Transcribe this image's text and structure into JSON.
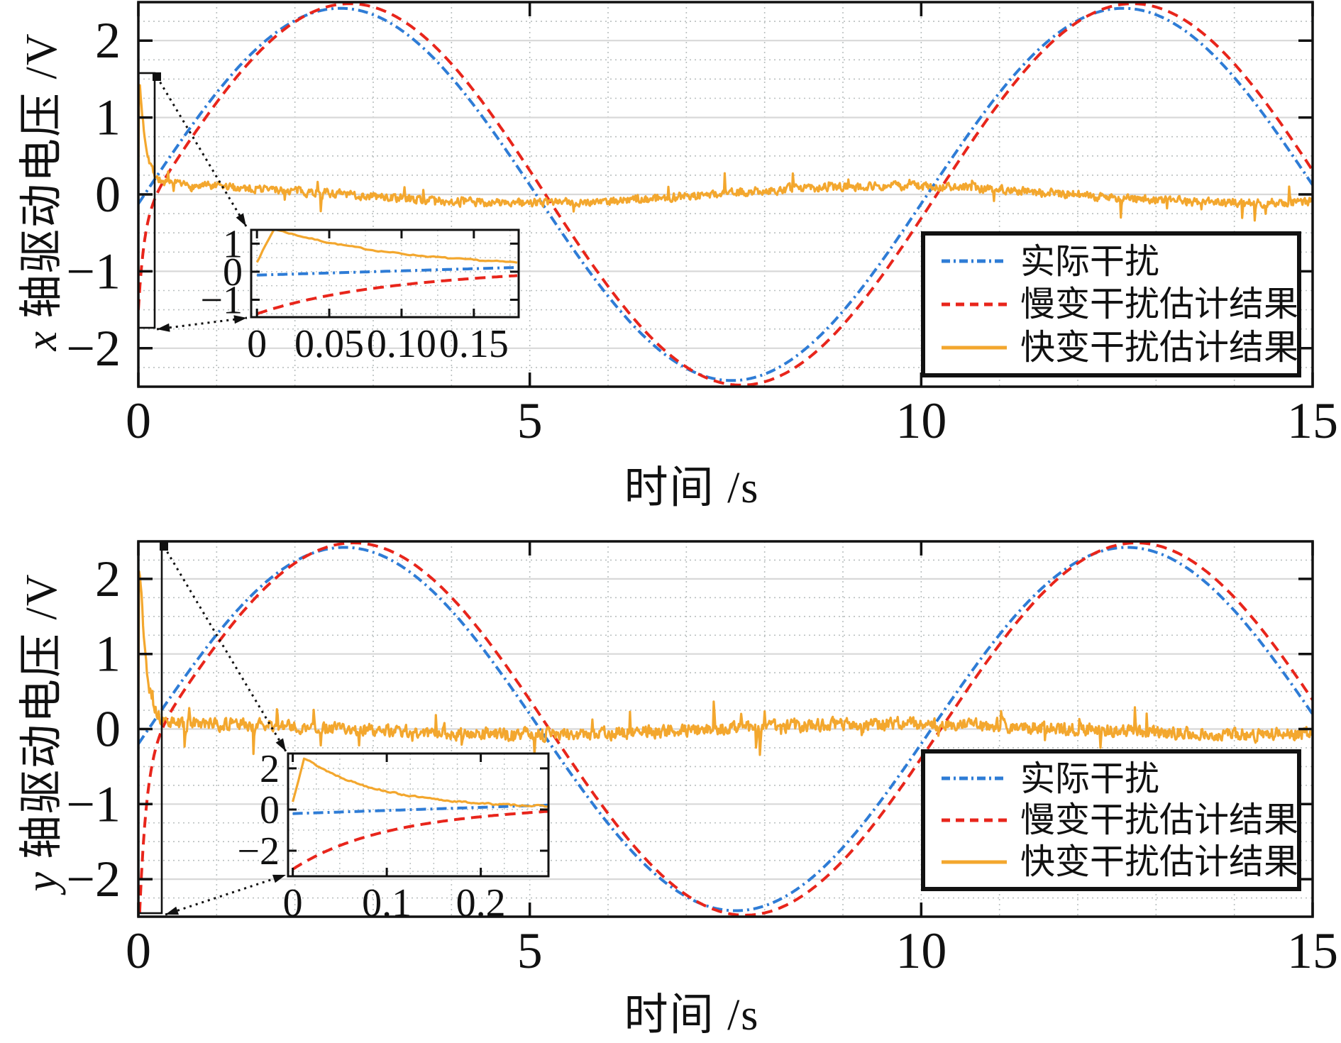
{
  "figure": {
    "background": "#ffffff",
    "text_color": "#111111"
  },
  "chart_data": [
    {
      "id": "x",
      "type": "line",
      "xlabel": "时间 /s",
      "ylabel_var": "x",
      "ylabel_text": "轴驱动电压 /V",
      "xlim": [
        0,
        15
      ],
      "ylim": [
        -2.5,
        2.5
      ],
      "xticks": {
        "values": [
          0,
          5,
          10,
          15
        ],
        "labels": [
          "0",
          "5",
          "10",
          "15"
        ]
      },
      "yticks": {
        "values": [
          2,
          1,
          0,
          -1,
          -2
        ],
        "labels": [
          "2",
          "1",
          "0",
          "−1",
          "−2"
        ]
      },
      "grid": {
        "x_step": 1,
        "y_major_step": 1,
        "y_minor_step": 0.25
      },
      "series": [
        {
          "name": "actual-disturbance",
          "label": "实际干扰",
          "color": "#2e7cd6",
          "line": "dashdot",
          "type": "sine",
          "amp": 2.42,
          "period": 10,
          "phase": 0.08
        },
        {
          "name": "slow-disturbance-estimate",
          "label": "慢变干扰估计结果",
          "color": "#e8251b",
          "line": "dashed",
          "type": "sine_transient",
          "amp": 2.48,
          "period": 10,
          "phase": 0.2,
          "transient_c": -1.19,
          "transient_tau": 0.075
        },
        {
          "name": "fast-disturbance-estimate",
          "label": "快变干扰估计结果",
          "color": "#f3a72e",
          "line": "solid",
          "type": "noise_transient",
          "drift_amp": 0.11,
          "drift_period": 9.3,
          "drift_phase": 2.0,
          "peak": 1.42,
          "tau": 0.09,
          "rise": 0.012,
          "v0": 0.25,
          "noise_amp": 0.05,
          "spike_p": 0.02,
          "seed": 7
        }
      ],
      "inset": {
        "xlim": [
          -0.004,
          0.181
        ],
        "ylim": [
          -1.62,
          1.49
        ],
        "xticks": {
          "values": [
            0,
            0.05,
            0.1,
            0.15
          ],
          "labels": [
            "0",
            "0.05",
            "0.10",
            "0.15"
          ]
        },
        "yticks": {
          "values": [
            1,
            0,
            -1
          ],
          "labels": [
            "1",
            "0",
            "−1"
          ]
        },
        "grid": {
          "x_step": 0.025,
          "y_step": 0.5
        }
      }
    },
    {
      "id": "y",
      "type": "line",
      "xlabel": "时间 /s",
      "ylabel_var": "y",
      "ylabel_text": "轴驱动电压 /V",
      "xlim": [
        0,
        15
      ],
      "ylim": [
        -2.5,
        2.5
      ],
      "xticks": {
        "values": [
          0,
          5,
          10,
          15
        ],
        "labels": [
          "0",
          "5",
          "10",
          "15"
        ]
      },
      "yticks": {
        "values": [
          2,
          1,
          0,
          -1,
          -2
        ],
        "labels": [
          "2",
          "1",
          "0",
          "−1",
          "−2"
        ]
      },
      "grid": {
        "x_step": 1,
        "y_major_step": 1,
        "y_minor_step": 0.25
      },
      "series": [
        {
          "name": "actual-disturbance",
          "label": "实际干扰",
          "color": "#2e7cd6",
          "line": "dashdot",
          "type": "sine",
          "amp": 2.42,
          "period": 10,
          "phase": 0.13
        },
        {
          "name": "slow-disturbance-estimate",
          "label": "慢变干扰估计结果",
          "color": "#e8251b",
          "line": "dashed",
          "type": "sine_transient",
          "amp": 2.48,
          "period": 10,
          "phase": 0.25,
          "transient_c": -2.51,
          "transient_tau": 0.09
        },
        {
          "name": "fast-disturbance-estimate",
          "label": "快变干扰估计结果",
          "color": "#f3a72e",
          "line": "solid",
          "type": "noise_transient",
          "drift_amp": 0.07,
          "drift_period": 9.3,
          "drift_phase": 2.0,
          "peak": 2.45,
          "tau": 0.08,
          "rise": 0.012,
          "v0": 0.3,
          "noise_amp": 0.075,
          "spike_p": 0.03,
          "seed": 13
        }
      ],
      "inset": {
        "xlim": [
          -0.005,
          0.272
        ],
        "ylim": [
          -3.24,
          2.72
        ],
        "xticks": {
          "values": [
            0,
            0.1,
            0.2
          ],
          "labels": [
            "0",
            "0.1",
            "0.2"
          ]
        },
        "yticks": {
          "values": [
            2,
            0,
            -2
          ],
          "labels": [
            "2",
            "0",
            "−2"
          ]
        },
        "grid": {
          "x_step": 0.025,
          "y_step": 1
        }
      }
    }
  ]
}
